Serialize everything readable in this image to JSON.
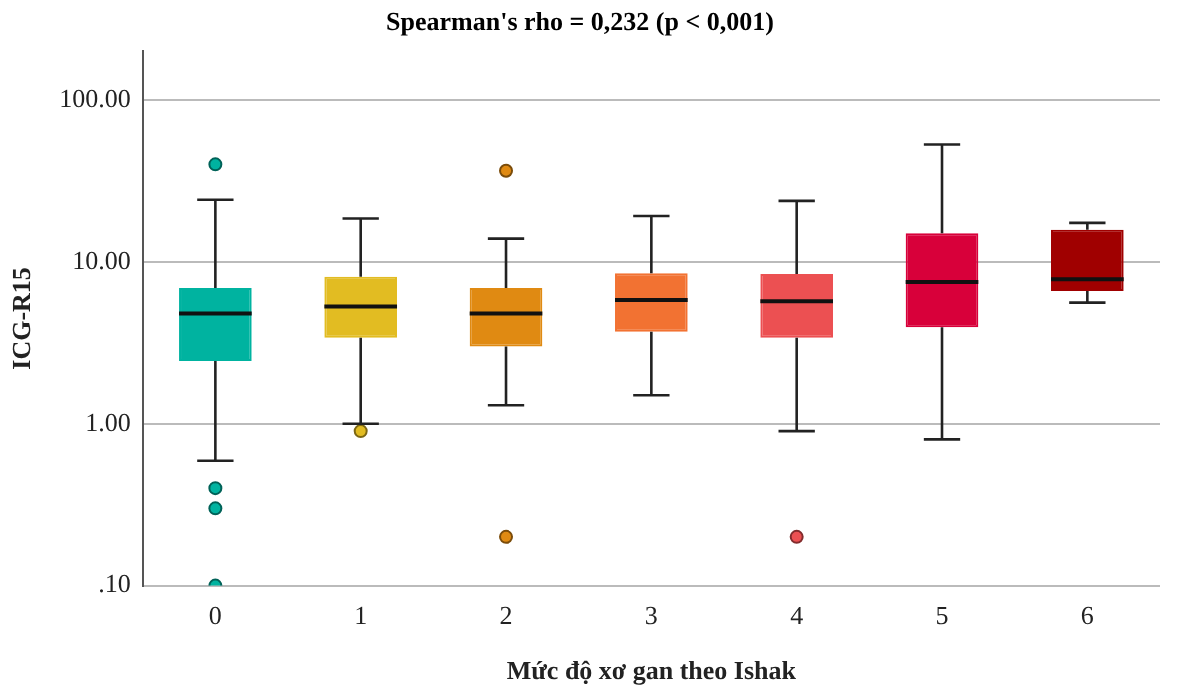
{
  "chart_data": {
    "type": "box",
    "title": "Spearman's rho = 0,232 (p < 0,001)",
    "xlabel": "Mức độ xơ gan theo Ishak",
    "ylabel": "ICG-R15",
    "categories": [
      "0",
      "1",
      "2",
      "3",
      "4",
      "5",
      "6"
    ],
    "colors": [
      "#00b3a0",
      "#e2bc22",
      "#e08a12",
      "#f27232",
      "#ec5052",
      "#d8003a",
      "#a00000"
    ],
    "boxes": [
      {
        "low": 0.59,
        "q1": 2.44,
        "median": 4.8,
        "q3": 6.9,
        "high": 24.2,
        "outliers": [
          40,
          0.4,
          0.3,
          0.1
        ]
      },
      {
        "low": 1.0,
        "q1": 3.4,
        "median": 5.3,
        "q3": 8.1,
        "high": 18.5,
        "outliers": [
          0.9
        ]
      },
      {
        "low": 1.3,
        "q1": 3.0,
        "median": 4.8,
        "q3": 6.9,
        "high": 13.9,
        "outliers": [
          36.5,
          0.2
        ]
      },
      {
        "low": 1.5,
        "q1": 3.7,
        "median": 5.8,
        "q3": 8.5,
        "high": 19.2
      },
      {
        "low": 0.9,
        "q1": 3.4,
        "median": 5.7,
        "q3": 8.4,
        "high": 23.8,
        "outliers": [
          0.2
        ]
      },
      {
        "low": 0.8,
        "q1": 3.95,
        "median": 7.5,
        "q3": 15,
        "high": 53
      },
      {
        "low": 5.6,
        "q1": 6.6,
        "median": 7.8,
        "q3": 15.8,
        "high": 17.4
      }
    ],
    "log": "y",
    "ylim": [
      0.1,
      200
    ],
    "yticks": [
      {
        "value": 0.1,
        "label": ".10"
      },
      {
        "value": 1,
        "label": "1.00"
      },
      {
        "value": 10,
        "label": "10.00"
      },
      {
        "value": 100,
        "label": "100.00"
      }
    ],
    "grid": "y",
    "legend": false,
    "marker": "circle"
  }
}
